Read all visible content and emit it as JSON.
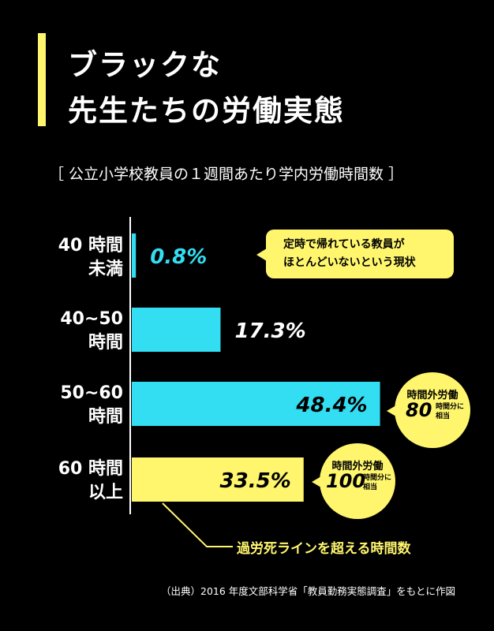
{
  "title": {
    "line1": "ブラックな",
    "line2": "先生たちの労働実態"
  },
  "subtitle": "［ 公立小学校教員の１週間あたり学内労働時間数 ］",
  "colors": {
    "cyan": "#33DDF2",
    "yellow": "#FFF66E",
    "background": "#000000"
  },
  "chart_data": {
    "type": "bar",
    "orientation": "horizontal",
    "categories": [
      "40 時間未満",
      "40~50 時間",
      "50~60 時間",
      "60 時間以上"
    ],
    "values": [
      0.8,
      17.3,
      48.4,
      33.5
    ],
    "value_labels": [
      "0.8%",
      "17.3%",
      "48.4%",
      "33.5%"
    ],
    "bar_colors": [
      "cyan",
      "cyan",
      "cyan",
      "yellow"
    ],
    "value_unit": "%",
    "xlim": [
      0,
      63
    ],
    "grid": false,
    "legend": "none"
  },
  "rows": [
    {
      "line1": "40 時間",
      "line2": "未満"
    },
    {
      "line1": "40~50",
      "line2": "時間"
    },
    {
      "line1": "50~60",
      "line2": "時間"
    },
    {
      "line1": "60 時間",
      "line2": "以上"
    }
  ],
  "callout": {
    "line1": "定時で帰れている教員が",
    "line2": "ほとんどいないという現状"
  },
  "circles": [
    {
      "top": "時間外労働",
      "number": "80",
      "small1": "時間分に",
      "small2": "相当"
    },
    {
      "top": "時間外労働",
      "number": "100",
      "small1": "時間分に",
      "small2": "相当"
    }
  ],
  "annotation": "過労死ラインを超える時間数",
  "source": "（出典）2016 年度文部科学省「教員勤務実態調査」をもとに作図"
}
